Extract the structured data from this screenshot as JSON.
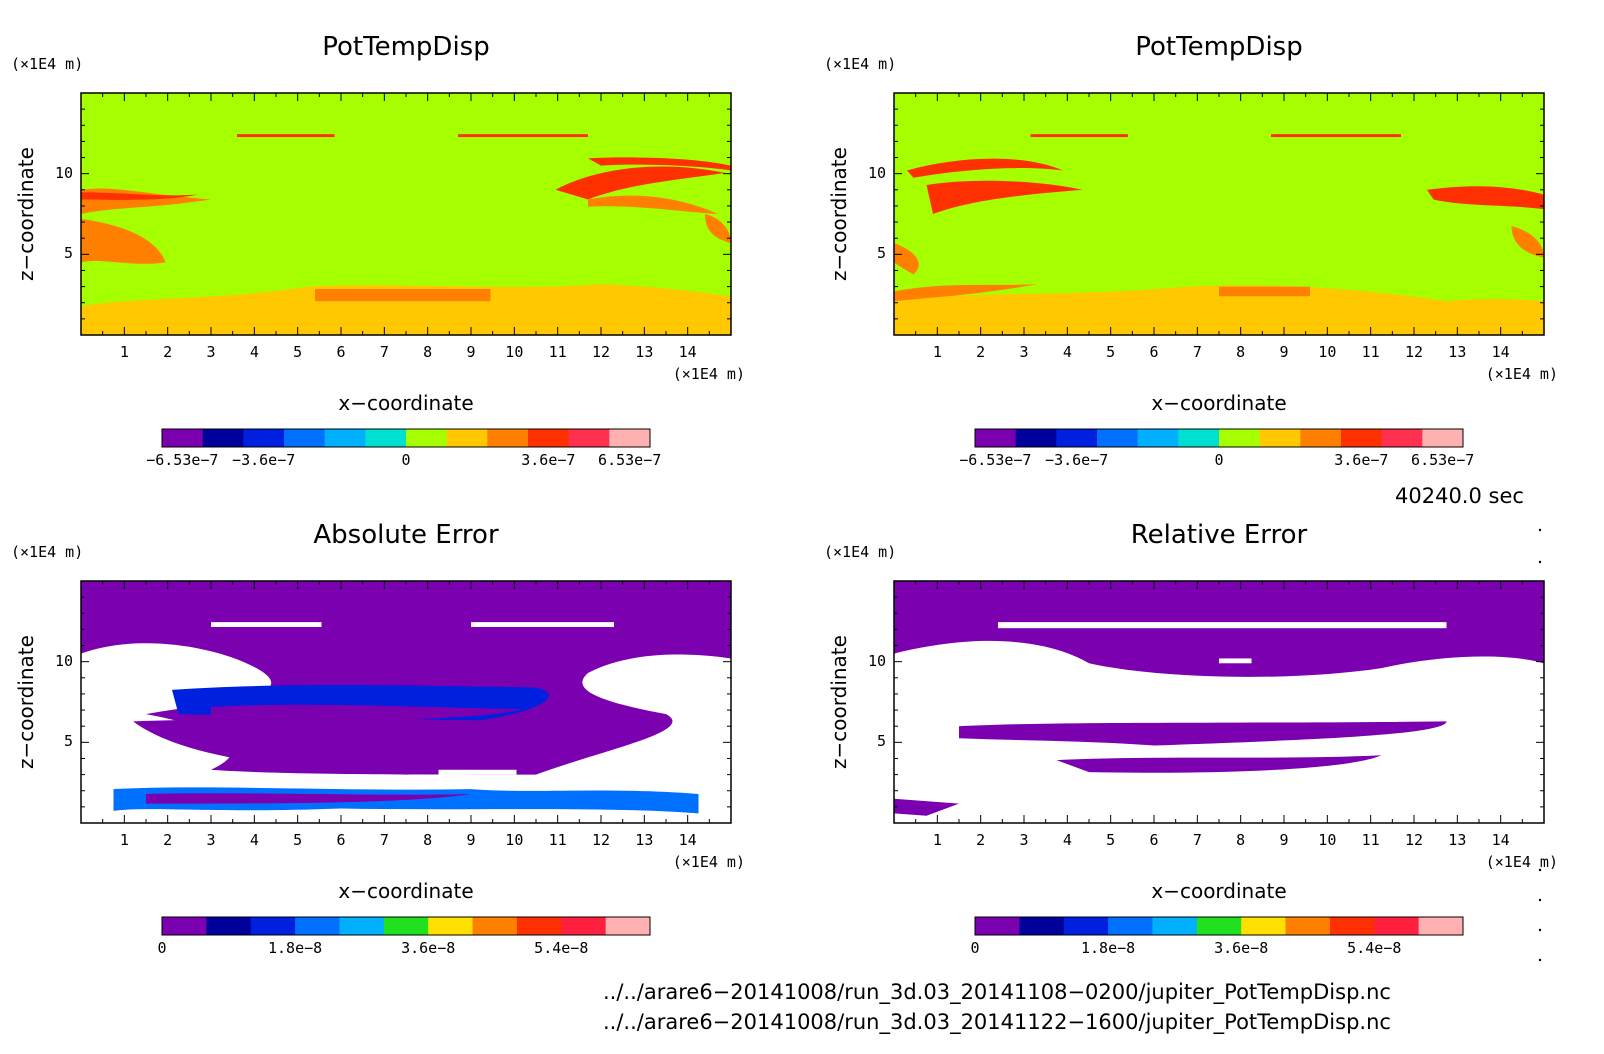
{
  "chart_data": [
    {
      "type": "heatmap",
      "title": "PotTempDisp",
      "xlabel": "x−coordinate",
      "ylabel": "z−coordinate",
      "x_unit": "(×1E4 m)",
      "y_unit": "(×1E4 m)",
      "xticks": [
        1,
        2,
        3,
        4,
        5,
        6,
        7,
        8,
        9,
        10,
        11,
        12,
        13,
        14
      ],
      "yticks": [
        5,
        10
      ],
      "xlim": [
        0,
        15
      ],
      "ylim": [
        0,
        15
      ],
      "colorbar": {
        "colors": [
          "#7b00b0",
          "#00009a",
          "#0020e0",
          "#0070ff",
          "#00b0ff",
          "#00e0d0",
          "#a6ff00",
          "#ffc800",
          "#ff8000",
          "#ff3000",
          "#ff3050",
          "#ffb0b0"
        ],
        "labels": [
          "−6.53e−7",
          "−3.6e−7",
          "0",
          "3.6e−7",
          "6.53e−7"
        ]
      }
    },
    {
      "type": "heatmap",
      "title": "PotTempDisp",
      "xlabel": "x−coordinate",
      "ylabel": "z−coordinate",
      "x_unit": "(×1E4 m)",
      "y_unit": "(×1E4 m)",
      "xticks": [
        1,
        2,
        3,
        4,
        5,
        6,
        7,
        8,
        9,
        10,
        11,
        12,
        13,
        14
      ],
      "yticks": [
        5,
        10
      ],
      "xlim": [
        0,
        15
      ],
      "ylim": [
        0,
        15
      ],
      "colorbar": {
        "colors": [
          "#7b00b0",
          "#00009a",
          "#0020e0",
          "#0070ff",
          "#00b0ff",
          "#00e0d0",
          "#a6ff00",
          "#ffc800",
          "#ff8000",
          "#ff3000",
          "#ff3050",
          "#ffb0b0"
        ],
        "labels": [
          "−6.53e−7",
          "−3.6e−7",
          "0",
          "3.6e−7",
          "6.53e−7"
        ]
      }
    },
    {
      "type": "heatmap",
      "title": "Absolute Error",
      "xlabel": "x−coordinate",
      "ylabel": "z−coordinate",
      "x_unit": "(×1E4 m)",
      "y_unit": "(×1E4 m)",
      "xticks": [
        1,
        2,
        3,
        4,
        5,
        6,
        7,
        8,
        9,
        10,
        11,
        12,
        13,
        14
      ],
      "yticks": [
        5,
        10
      ],
      "xlim": [
        0,
        15
      ],
      "ylim": [
        0,
        15
      ],
      "colorbar": {
        "colors": [
          "#7b00b0",
          "#00009a",
          "#0020e0",
          "#0070ff",
          "#00b0ff",
          "#20e020",
          "#ffe000",
          "#ff8000",
          "#ff3000",
          "#ff2040",
          "#ffb0b0"
        ],
        "labels": [
          "0",
          "1.8e−8",
          "3.6e−8",
          "5.4e−8"
        ]
      }
    },
    {
      "type": "heatmap",
      "title": "Relative Error",
      "xlabel": "x−coordinate",
      "ylabel": "z−coordinate",
      "x_unit": "(×1E4 m)",
      "y_unit": "(×1E4 m)",
      "xticks": [
        1,
        2,
        3,
        4,
        5,
        6,
        7,
        8,
        9,
        10,
        11,
        12,
        13,
        14
      ],
      "yticks": [
        5,
        10
      ],
      "xlim": [
        0,
        15
      ],
      "ylim": [
        0,
        15
      ],
      "colorbar": {
        "colors": [
          "#7b00b0",
          "#00009a",
          "#0020e0",
          "#0070ff",
          "#00b0ff",
          "#20e020",
          "#ffe000",
          "#ff8000",
          "#ff3000",
          "#ff2040",
          "#ffb0b0"
        ],
        "labels": [
          "0",
          "1.8e−8",
          "3.6e−8",
          "5.4e−8"
        ]
      }
    }
  ],
  "time_label": "40240.0 sec",
  "files": [
    "../../arare6−20141008/run_3d.03_20141108−0200/jupiter_PotTempDisp.nc",
    "../../arare6−20141008/run_3d.03_20141122−1600/jupiter_PotTempDisp.nc"
  ]
}
